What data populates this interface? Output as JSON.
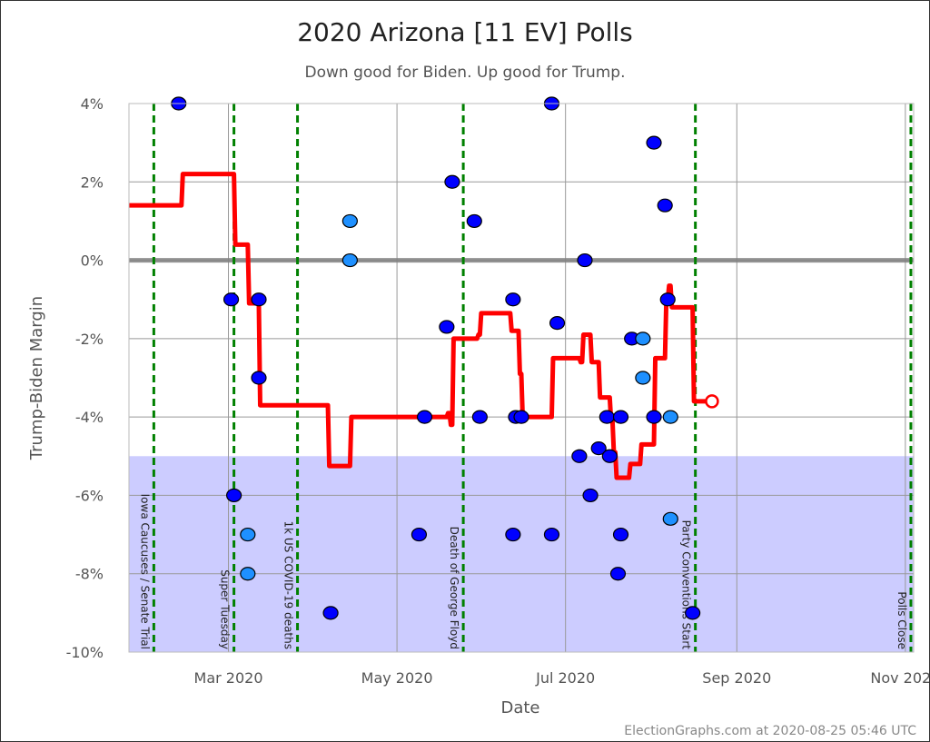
{
  "chart_data": {
    "type": "scatter",
    "title": "2020 Arizona [11 EV] Polls",
    "subtitle": "Down good for Biden. Up good for Trump.",
    "xlabel": "Date",
    "ylabel": "Trump-Biden Margin",
    "footer": "ElectionGraphs.com at 2020-08-25 05:46 UTC",
    "xlim": [
      "2020-01-25",
      "2020-11-04"
    ],
    "ylim": [
      -10,
      4
    ],
    "yticks": [
      4,
      2,
      0,
      -2,
      -4,
      -6,
      -8,
      -10
    ],
    "ytick_labels": [
      "4%",
      "2%",
      "0%",
      "-2%",
      "-4%",
      "-6%",
      "-8%",
      "-10%"
    ],
    "xticks": [
      {
        "date": "2020-03-01",
        "label": "Mar 2020"
      },
      {
        "date": "2020-05-01",
        "label": "May 2020"
      },
      {
        "date": "2020-07-01",
        "label": "Jul 2020"
      },
      {
        "date": "2020-09-01",
        "label": "Sep 2020"
      },
      {
        "date": "2020-11-01",
        "label": "Nov 2020"
      }
    ],
    "grid": true,
    "shaded_region": {
      "from": -10,
      "to": -5,
      "color": "#ccccff"
    },
    "zero_line_color": "#808080",
    "colors": {
      "poll": "#0000ff",
      "poll_alt": "#1e90ff",
      "trend": "#ff0000",
      "event": "#008000"
    },
    "events": [
      {
        "date": "2020-02-03",
        "label": "Iowa Caucuses / Senate Trial"
      },
      {
        "date": "2020-03-03",
        "label": "Super Tuesday"
      },
      {
        "date": "2020-03-26",
        "label": "1k US COVID-19 deaths"
      },
      {
        "date": "2020-05-25",
        "label": "Death of George Floyd"
      },
      {
        "date": "2020-08-17",
        "label": "Party Conventions Start"
      },
      {
        "date": "2020-11-03",
        "label": "Polls Close"
      }
    ],
    "polls": [
      {
        "date": "2020-02-12",
        "margin": 4,
        "type": "poll"
      },
      {
        "date": "2020-03-02",
        "margin": -1,
        "type": "poll"
      },
      {
        "date": "2020-03-03",
        "margin": -6,
        "type": "poll"
      },
      {
        "date": "2020-03-08",
        "margin": -7,
        "type": "poll_alt"
      },
      {
        "date": "2020-03-08",
        "margin": -8,
        "type": "poll_alt"
      },
      {
        "date": "2020-03-12",
        "margin": -1,
        "type": "poll"
      },
      {
        "date": "2020-03-12",
        "margin": -3,
        "type": "poll"
      },
      {
        "date": "2020-04-07",
        "margin": -9,
        "type": "poll"
      },
      {
        "date": "2020-04-14",
        "margin": 1,
        "type": "poll_alt"
      },
      {
        "date": "2020-04-14",
        "margin": 0,
        "type": "poll_alt"
      },
      {
        "date": "2020-05-09",
        "margin": -7,
        "type": "poll"
      },
      {
        "date": "2020-05-11",
        "margin": -4,
        "type": "poll"
      },
      {
        "date": "2020-05-19",
        "margin": -1.7,
        "type": "poll"
      },
      {
        "date": "2020-05-21",
        "margin": 2,
        "type": "poll"
      },
      {
        "date": "2020-05-29",
        "margin": 1,
        "type": "poll"
      },
      {
        "date": "2020-05-31",
        "margin": -4,
        "type": "poll"
      },
      {
        "date": "2020-06-12",
        "margin": -7,
        "type": "poll"
      },
      {
        "date": "2020-06-12",
        "margin": -1,
        "type": "poll"
      },
      {
        "date": "2020-06-13",
        "margin": -4,
        "type": "poll"
      },
      {
        "date": "2020-06-15",
        "margin": -4,
        "type": "poll"
      },
      {
        "date": "2020-06-26",
        "margin": 4,
        "type": "poll"
      },
      {
        "date": "2020-06-26",
        "margin": -7,
        "type": "poll"
      },
      {
        "date": "2020-06-28",
        "margin": -1.6,
        "type": "poll"
      },
      {
        "date": "2020-07-06",
        "margin": -5,
        "type": "poll"
      },
      {
        "date": "2020-07-08",
        "margin": 0,
        "type": "poll"
      },
      {
        "date": "2020-07-10",
        "margin": -6,
        "type": "poll"
      },
      {
        "date": "2020-07-13",
        "margin": -4.8,
        "type": "poll"
      },
      {
        "date": "2020-07-16",
        "margin": -4,
        "type": "poll"
      },
      {
        "date": "2020-07-17",
        "margin": -5,
        "type": "poll"
      },
      {
        "date": "2020-07-20",
        "margin": -8,
        "type": "poll"
      },
      {
        "date": "2020-07-21",
        "margin": -4,
        "type": "poll"
      },
      {
        "date": "2020-07-21",
        "margin": -7,
        "type": "poll"
      },
      {
        "date": "2020-07-25",
        "margin": -2,
        "type": "poll"
      },
      {
        "date": "2020-07-29",
        "margin": -2,
        "type": "poll_alt"
      },
      {
        "date": "2020-07-29",
        "margin": -3,
        "type": "poll_alt"
      },
      {
        "date": "2020-08-02",
        "margin": 3,
        "type": "poll"
      },
      {
        "date": "2020-08-02",
        "margin": -4,
        "type": "poll"
      },
      {
        "date": "2020-08-06",
        "margin": 1.4,
        "type": "poll"
      },
      {
        "date": "2020-08-07",
        "margin": -1,
        "type": "poll"
      },
      {
        "date": "2020-08-08",
        "margin": -4,
        "type": "poll_alt"
      },
      {
        "date": "2020-08-08",
        "margin": -6.6,
        "type": "poll_alt"
      },
      {
        "date": "2020-08-16",
        "margin": -9,
        "type": "poll"
      }
    ],
    "trend": [
      [
        "2020-01-25",
        1.4
      ],
      [
        "2020-02-13",
        2.2
      ],
      [
        "2020-03-03",
        0.4
      ],
      [
        "2020-03-08",
        -1.1
      ],
      [
        "2020-03-12",
        -3.7
      ],
      [
        "2020-04-06",
        -5.25
      ],
      [
        "2020-04-14",
        -4.0
      ],
      [
        "2020-05-19",
        -3.9
      ],
      [
        "2020-05-20",
        -4.2
      ],
      [
        "2020-05-21",
        -2.0
      ],
      [
        "2020-05-30",
        -1.9
      ],
      [
        "2020-05-31",
        -1.35
      ],
      [
        "2020-06-11",
        -1.8
      ],
      [
        "2020-06-14",
        -2.9
      ],
      [
        "2020-06-15",
        -4.0
      ],
      [
        "2020-06-26",
        -2.5
      ],
      [
        "2020-07-06",
        -2.6
      ],
      [
        "2020-07-07",
        -1.9
      ],
      [
        "2020-07-10",
        -2.6
      ],
      [
        "2020-07-13",
        -3.5
      ],
      [
        "2020-07-17",
        -4.1
      ],
      [
        "2020-07-18",
        -4.9
      ],
      [
        "2020-07-19",
        -5.55
      ],
      [
        "2020-07-24",
        -5.2
      ],
      [
        "2020-07-28",
        -4.7
      ],
      [
        "2020-08-02",
        -2.5
      ],
      [
        "2020-08-06",
        -1.0
      ],
      [
        "2020-08-07",
        -0.65
      ],
      [
        "2020-08-08",
        -1.2
      ],
      [
        "2020-08-16",
        -3.6
      ],
      [
        "2020-08-23",
        -3.6
      ]
    ],
    "trend_current": {
      "date": "2020-08-23",
      "margin": -3.6
    }
  }
}
